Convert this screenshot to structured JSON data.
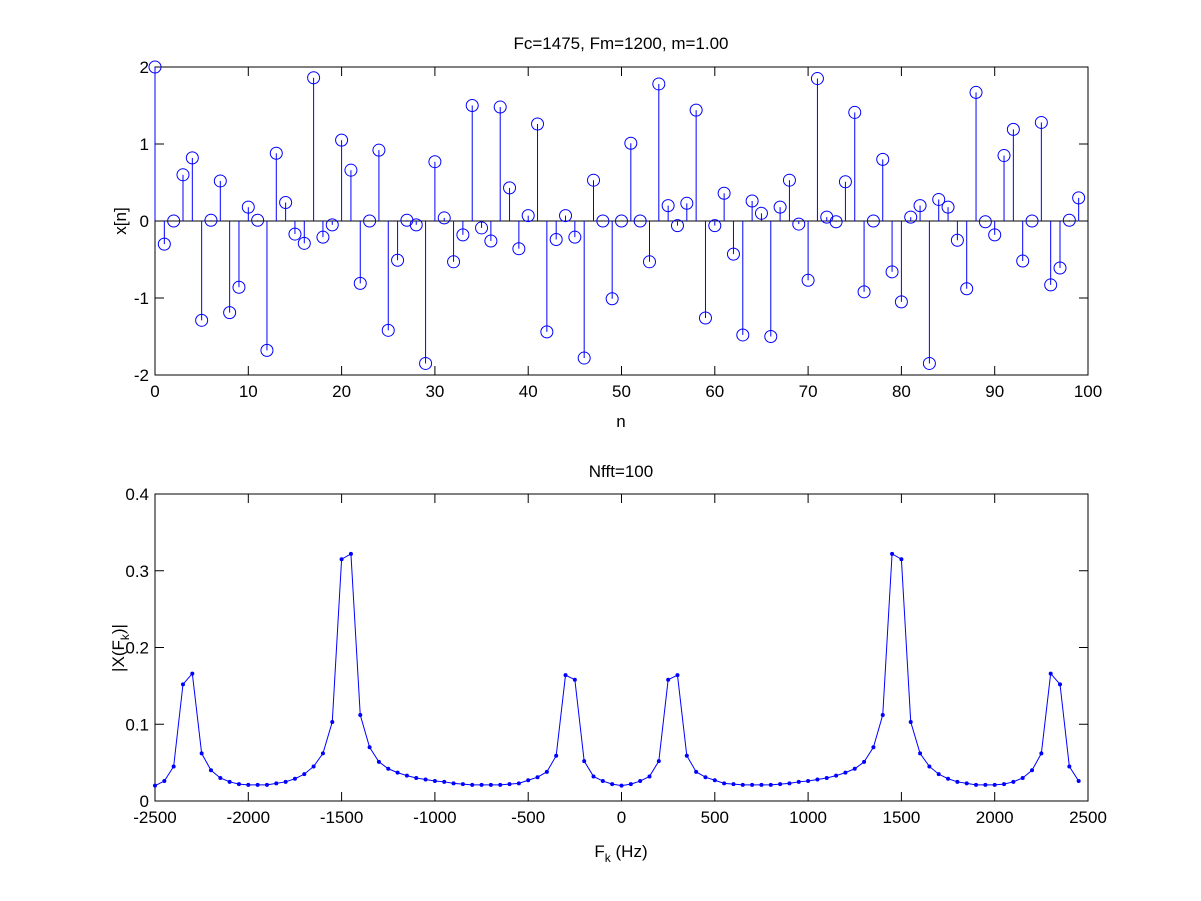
{
  "chart_data": [
    {
      "type": "stem",
      "title": "Fc=1475, Fm=1200, m=1.00",
      "xlabel": "n",
      "ylabel": "x[n]",
      "xlim": [
        0,
        100
      ],
      "ylim": [
        -2,
        2
      ],
      "xticks": [
        0,
        10,
        20,
        30,
        40,
        50,
        60,
        70,
        80,
        90,
        100
      ],
      "yticks": [
        -2,
        -1,
        0,
        1,
        2
      ],
      "grid": false,
      "color": "#0000ff",
      "marker": "circle",
      "x_start": 0,
      "values": [
        2.0,
        -0.3,
        0.0,
        0.6,
        0.82,
        -1.29,
        0.01,
        0.52,
        -1.19,
        -0.86,
        0.18,
        0.01,
        -1.68,
        0.88,
        0.24,
        -0.17,
        -0.29,
        1.86,
        -0.21,
        -0.05,
        1.05,
        0.66,
        -0.81,
        0.0,
        0.92,
        -1.42,
        -0.51,
        0.01,
        -0.05,
        -1.85,
        0.77,
        0.04,
        -0.53,
        -0.18,
        1.5,
        -0.09,
        -0.26,
        1.48,
        0.43,
        -0.36,
        0.07,
        1.26,
        -1.44,
        -0.24,
        0.07,
        -0.21,
        -1.78,
        0.53,
        0.0,
        -1.01,
        0.0,
        1.01,
        0.0,
        -0.53,
        1.78,
        0.2,
        -0.06,
        0.23,
        1.44,
        -1.26,
        -0.06,
        0.36,
        -0.43,
        -1.48,
        0.26,
        0.1,
        -1.5,
        0.18,
        0.53,
        -0.04,
        -0.77,
        1.85,
        0.05,
        -0.01,
        0.51,
        1.41,
        -0.92,
        0.0,
        0.8,
        -0.66,
        -1.05,
        0.05,
        0.2,
        -1.85,
        0.28,
        0.18,
        -0.25,
        -0.88,
        1.67,
        -0.01,
        -0.18,
        0.85,
        1.19,
        -0.52,
        0.0,
        1.28,
        -0.83,
        -0.61,
        0.01,
        0.3
      ]
    },
    {
      "type": "line",
      "title": "Nfft=100",
      "xlabel_main": "F",
      "xlabel_sub": "k",
      "xlabel_unit": " (Hz)",
      "ylabel_pre": "|X(F",
      "ylabel_sub": "k",
      "ylabel_post": ")|",
      "xlim": [
        -2500,
        2500
      ],
      "ylim": [
        0,
        0.4
      ],
      "xticks": [
        -2500,
        -2000,
        -1500,
        -1000,
        -500,
        0,
        500,
        1000,
        1500,
        2000,
        2500
      ],
      "yticks": [
        0,
        0.1,
        0.2,
        0.3,
        0.4
      ],
      "grid": false,
      "color": "#0000ff",
      "marker": "dot",
      "x_start": -2500,
      "x_step": 50,
      "values": [
        0.02,
        0.026,
        0.045,
        0.152,
        0.166,
        0.062,
        0.04,
        0.03,
        0.025,
        0.022,
        0.021,
        0.021,
        0.021,
        0.023,
        0.025,
        0.029,
        0.035,
        0.045,
        0.062,
        0.103,
        0.315,
        0.322,
        0.112,
        0.07,
        0.051,
        0.042,
        0.037,
        0.033,
        0.03,
        0.028,
        0.026,
        0.025,
        0.023,
        0.022,
        0.021,
        0.021,
        0.021,
        0.021,
        0.022,
        0.023,
        0.027,
        0.031,
        0.038,
        0.059,
        0.164,
        0.158,
        0.052,
        0.032,
        0.026,
        0.022,
        0.02,
        0.022,
        0.026,
        0.032,
        0.052,
        0.158,
        0.164,
        0.059,
        0.038,
        0.031,
        0.027,
        0.023,
        0.022,
        0.021,
        0.021,
        0.021,
        0.021,
        0.022,
        0.023,
        0.025,
        0.026,
        0.028,
        0.03,
        0.033,
        0.037,
        0.042,
        0.051,
        0.07,
        0.112,
        0.322,
        0.315,
        0.103,
        0.062,
        0.045,
        0.035,
        0.029,
        0.025,
        0.023,
        0.021,
        0.021,
        0.021,
        0.022,
        0.025,
        0.03,
        0.04,
        0.062,
        0.166,
        0.152,
        0.045,
        0.026
      ]
    }
  ]
}
